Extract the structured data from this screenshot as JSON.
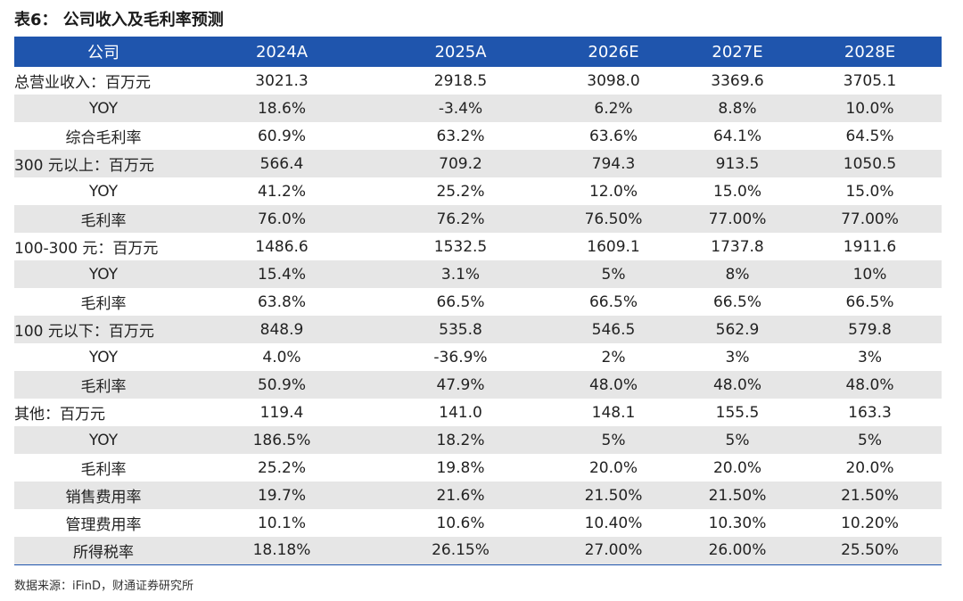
{
  "title": "表6： 公司收入及毛利率预测",
  "header": [
    "公司",
    "2024A",
    "2025A",
    "2026E",
    "2027E",
    "2028E"
  ],
  "rows": [
    {
      "label": "总营业收入：百万元",
      "align": "left",
      "values": [
        "3021.3",
        "2918.5",
        "3098.0",
        "3369.6",
        "3705.1"
      ]
    },
    {
      "label": "YOY",
      "align": "center",
      "values": [
        "18.6%",
        "-3.4%",
        "6.2%",
        "8.8%",
        "10.0%"
      ]
    },
    {
      "label": "综合毛利率",
      "align": "center",
      "values": [
        "60.9%",
        "63.2%",
        "63.6%",
        "64.1%",
        "64.5%"
      ]
    },
    {
      "label": "300 元以上：百万元",
      "align": "left",
      "values": [
        "566.4",
        "709.2",
        "794.3",
        "913.5",
        "1050.5"
      ]
    },
    {
      "label": "YOY",
      "align": "center",
      "values": [
        "41.2%",
        "25.2%",
        "12.0%",
        "15.0%",
        "15.0%"
      ]
    },
    {
      "label": "毛利率",
      "align": "center",
      "values": [
        "76.0%",
        "76.2%",
        "76.50%",
        "77.00%",
        "77.00%"
      ]
    },
    {
      "label": "100-300 元：百万元",
      "align": "left",
      "values": [
        "1486.6",
        "1532.5",
        "1609.1",
        "1737.8",
        "1911.6"
      ]
    },
    {
      "label": "YOY",
      "align": "center",
      "values": [
        "15.4%",
        "3.1%",
        "5%",
        "8%",
        "10%"
      ]
    },
    {
      "label": "毛利率",
      "align": "center",
      "values": [
        "63.8%",
        "66.5%",
        "66.5%",
        "66.5%",
        "66.5%"
      ]
    },
    {
      "label": "100 元以下：百万元",
      "align": "left",
      "values": [
        "848.9",
        "535.8",
        "546.5",
        "562.9",
        "579.8"
      ]
    },
    {
      "label": "YOY",
      "align": "center",
      "values": [
        "4.0%",
        "-36.9%",
        "2%",
        "3%",
        "3%"
      ]
    },
    {
      "label": "毛利率",
      "align": "center",
      "values": [
        "50.9%",
        "47.9%",
        "48.0%",
        "48.0%",
        "48.0%"
      ]
    },
    {
      "label": "其他：百万元",
      "align": "left",
      "values": [
        "119.4",
        "141.0",
        "148.1",
        "155.5",
        "163.3"
      ]
    },
    {
      "label": "YOY",
      "align": "center",
      "values": [
        "186.5%",
        "18.2%",
        "5%",
        "5%",
        "5%"
      ]
    },
    {
      "label": "毛利率",
      "align": "center",
      "values": [
        "25.2%",
        "19.8%",
        "20.0%",
        "20.0%",
        "20.0%"
      ]
    },
    {
      "label": "销售费用率",
      "align": "center",
      "values": [
        "19.7%",
        "21.6%",
        "21.50%",
        "21.50%",
        "21.50%"
      ]
    },
    {
      "label": "管理费用率",
      "align": "center",
      "values": [
        "10.1%",
        "10.6%",
        "10.40%",
        "10.30%",
        "10.20%"
      ]
    },
    {
      "label": "所得税率",
      "align": "center",
      "values": [
        "18.18%",
        "26.15%",
        "27.00%",
        "26.00%",
        "25.50%"
      ]
    }
  ],
  "source": "数据来源：iFinD，财通证券研究所",
  "colors": {
    "header_bg": "#1f55ad",
    "shade_bg": "#e6e6e6"
  }
}
